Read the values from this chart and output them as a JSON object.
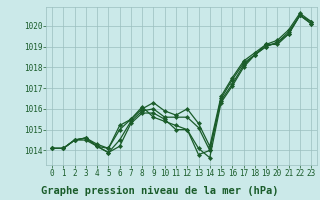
{
  "background_color": "#cbe9e9",
  "grid_color": "#9bbfbf",
  "line_color": "#1a5c2a",
  "marker_color": "#1a5c2a",
  "xlabel": "Graphe pression niveau de la mer (hPa)",
  "xlabel_fontsize": 7.5,
  "ylabel_values": [
    1014,
    1015,
    1016,
    1017,
    1018,
    1019,
    1020
  ],
  "xtick_labels": [
    "0",
    "1",
    "2",
    "3",
    "4",
    "5",
    "6",
    "7",
    "8",
    "9",
    "10",
    "11",
    "12",
    "13",
    "14",
    "15",
    "16",
    "17",
    "18",
    "19",
    "20",
    "21",
    "22",
    "23"
  ],
  "ylim": [
    1013.3,
    1020.9
  ],
  "xlim": [
    -0.5,
    23.5
  ],
  "series": [
    [
      1014.1,
      1014.1,
      1014.5,
      1014.5,
      1014.2,
      1013.9,
      1014.2,
      1015.3,
      1015.8,
      1015.8,
      1015.5,
      1015.0,
      1015.0,
      1014.1,
      1013.65,
      1016.3,
      1017.1,
      1018.0,
      1018.6,
      1019.1,
      1019.1,
      1019.6,
      1020.5,
      1020.1
    ],
    [
      1014.1,
      1014.1,
      1014.5,
      1014.6,
      1014.2,
      1013.9,
      1014.5,
      1015.4,
      1015.9,
      1016.0,
      1015.6,
      1015.6,
      1015.6,
      1015.1,
      1014.0,
      1016.5,
      1017.4,
      1018.2,
      1018.6,
      1019.0,
      1019.2,
      1019.7,
      1020.5,
      1020.2
    ],
    [
      1014.1,
      1014.1,
      1014.5,
      1014.6,
      1014.2,
      1014.1,
      1015.0,
      1015.5,
      1016.0,
      1016.3,
      1015.9,
      1015.7,
      1016.0,
      1015.3,
      1014.2,
      1016.6,
      1017.5,
      1018.3,
      1018.7,
      1019.1,
      1019.3,
      1019.8,
      1020.6,
      1020.2
    ],
    [
      1014.1,
      1014.1,
      1014.5,
      1014.6,
      1014.3,
      1014.1,
      1015.2,
      1015.5,
      1016.1,
      1015.6,
      1015.4,
      1015.2,
      1015.0,
      1013.8,
      1014.0,
      1016.4,
      1017.2,
      1018.1,
      1018.6,
      1019.0,
      1019.2,
      1019.6,
      1020.5,
      1020.1
    ]
  ],
  "marker_size": 2.2,
  "linewidth": 0.9,
  "tick_fontsize": 5.5,
  "tick_color": "#1a5c2a"
}
